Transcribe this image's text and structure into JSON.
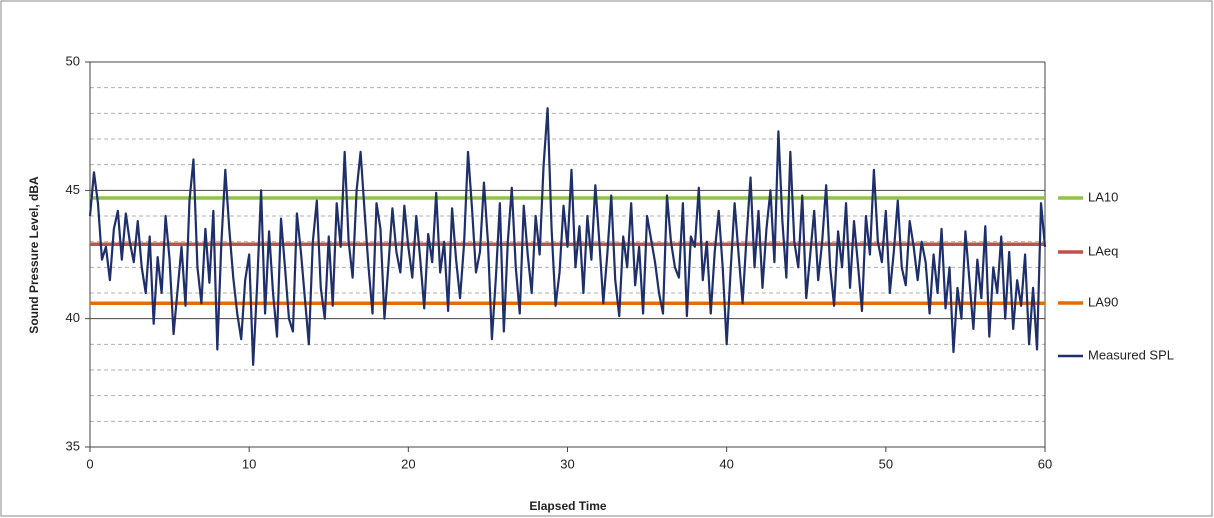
{
  "chart_data": {
    "type": "line",
    "x_label": "Elapsed Time",
    "y_label": "Sound Pressure Level, dBA",
    "xlim": [
      0,
      60
    ],
    "xticks": [
      0,
      10,
      20,
      30,
      40,
      50,
      60
    ],
    "ylim": [
      35,
      50
    ],
    "yticks": [
      35,
      40,
      45,
      50
    ],
    "minor_yticks": [
      36,
      37,
      38,
      39,
      41,
      42,
      43,
      44,
      46,
      47,
      48,
      49
    ],
    "legend": "right",
    "reference_lines": [
      {
        "name": "LA10",
        "color": "#92c050",
        "value": 44.7
      },
      {
        "name": "LAeq",
        "color": "#c0504d",
        "value": 42.9
      },
      {
        "name": "LA90",
        "color": "#e46c0a",
        "value": 40.6
      }
    ],
    "x": [
      0,
      0.25,
      0.5,
      0.75,
      1,
      1.25,
      1.5,
      1.75,
      2,
      2.25,
      2.5,
      2.75,
      3,
      3.25,
      3.5,
      3.75,
      4,
      4.25,
      4.5,
      4.75,
      5,
      5.25,
      5.5,
      5.75,
      6,
      6.25,
      6.5,
      6.75,
      7,
      7.25,
      7.5,
      7.75,
      8,
      8.25,
      8.5,
      8.75,
      9,
      9.25,
      9.5,
      9.75,
      10,
      10.25,
      10.5,
      10.75,
      11,
      11.25,
      11.5,
      11.75,
      12,
      12.25,
      12.5,
      12.75,
      13,
      13.25,
      13.5,
      13.75,
      14,
      14.25,
      14.5,
      14.75,
      15,
      15.25,
      15.5,
      15.75,
      16,
      16.25,
      16.5,
      16.75,
      17,
      17.25,
      17.5,
      17.75,
      18,
      18.25,
      18.5,
      18.75,
      19,
      19.25,
      19.5,
      19.75,
      20,
      20.25,
      20.5,
      20.75,
      21,
      21.25,
      21.5,
      21.75,
      22,
      22.25,
      22.5,
      22.75,
      23,
      23.25,
      23.5,
      23.75,
      24,
      24.25,
      24.5,
      24.75,
      25,
      25.25,
      25.5,
      25.75,
      26,
      26.25,
      26.5,
      26.75,
      27,
      27.25,
      27.5,
      27.75,
      28,
      28.25,
      28.5,
      28.75,
      29,
      29.25,
      29.5,
      29.75,
      30,
      30.25,
      30.5,
      30.75,
      31,
      31.25,
      31.5,
      31.75,
      32,
      32.25,
      32.5,
      32.75,
      33,
      33.25,
      33.5,
      33.75,
      34,
      34.25,
      34.5,
      34.75,
      35,
      35.25,
      35.5,
      35.75,
      36,
      36.25,
      36.5,
      36.75,
      37,
      37.25,
      37.5,
      37.75,
      38,
      38.25,
      38.5,
      38.75,
      39,
      39.25,
      39.5,
      39.75,
      40,
      40.25,
      40.5,
      40.75,
      41,
      41.25,
      41.5,
      41.75,
      42,
      42.25,
      42.5,
      42.75,
      43,
      43.25,
      43.5,
      43.75,
      44,
      44.25,
      44.5,
      44.75,
      45,
      45.25,
      45.5,
      45.75,
      46,
      46.25,
      46.5,
      46.75,
      47,
      47.25,
      47.5,
      47.75,
      48,
      48.25,
      48.5,
      48.75,
      49,
      49.25,
      49.5,
      49.75,
      50,
      50.25,
      50.5,
      50.75,
      51,
      51.25,
      51.5,
      51.75,
      52,
      52.25,
      52.5,
      52.75,
      53,
      53.25,
      53.5,
      53.75,
      54,
      54.25,
      54.5,
      54.75,
      55,
      55.25,
      55.5,
      55.75,
      56,
      56.25,
      56.5,
      56.75,
      57,
      57.25,
      57.5,
      57.75,
      58,
      58.25,
      58.5,
      58.75,
      59,
      59.25,
      59.5,
      59.75,
      60
    ],
    "series": [
      {
        "name": "Measured SPL",
        "color": "#1f2f6b",
        "values": [
          44.0,
          45.7,
          44.5,
          42.3,
          42.8,
          41.5,
          43.5,
          44.2,
          42.3,
          44.1,
          43.0,
          42.2,
          43.8,
          42.0,
          41.0,
          43.2,
          39.8,
          42.4,
          41.0,
          44.0,
          42.3,
          39.4,
          41.1,
          42.8,
          40.5,
          44.6,
          46.2,
          42.0,
          40.6,
          43.5,
          41.4,
          44.2,
          38.8,
          42.9,
          45.8,
          43.5,
          41.6,
          40.2,
          39.2,
          41.5,
          42.5,
          38.2,
          41.3,
          45.0,
          40.2,
          43.4,
          41.0,
          39.3,
          43.9,
          42.0,
          40.0,
          39.5,
          44.1,
          42.6,
          40.8,
          39.0,
          43.0,
          44.6,
          41.2,
          40.0,
          43.2,
          40.5,
          44.5,
          42.8,
          46.5,
          43.0,
          41.6,
          45.0,
          46.5,
          44.2,
          42.0,
          40.2,
          44.5,
          43.5,
          40.0,
          42.1,
          44.3,
          42.6,
          41.8,
          44.4,
          42.8,
          41.6,
          44.0,
          42.3,
          40.4,
          43.3,
          42.2,
          44.9,
          41.8,
          43.0,
          40.3,
          44.3,
          42.3,
          40.8,
          42.9,
          46.5,
          44.3,
          41.8,
          42.6,
          45.3,
          43.0,
          39.2,
          41.6,
          44.5,
          39.5,
          43.0,
          45.1,
          42.0,
          40.2,
          44.4,
          42.5,
          41.0,
          44.0,
          42.5,
          46.0,
          48.2,
          43.5,
          40.5,
          41.8,
          44.4,
          42.8,
          45.8,
          42.0,
          43.6,
          41.0,
          44.0,
          42.3,
          45.2,
          43.0,
          40.6,
          42.5,
          44.8,
          41.5,
          40.1,
          43.2,
          42.0,
          44.5,
          41.3,
          42.8,
          40.2,
          44.0,
          43.1,
          42.2,
          41.0,
          40.2,
          44.8,
          43.0,
          42.0,
          41.6,
          44.5,
          40.1,
          43.2,
          42.8,
          45.1,
          41.5,
          43.0,
          40.2,
          42.6,
          44.2,
          42.0,
          39.0,
          41.9,
          44.5,
          42.5,
          40.6,
          43.2,
          45.5,
          42.0,
          44.2,
          41.2,
          43.5,
          45.0,
          42.2,
          47.3,
          43.8,
          41.6,
          46.5,
          43.0,
          42.0,
          44.8,
          40.8,
          42.5,
          44.2,
          41.5,
          43.0,
          45.2,
          42.0,
          40.5,
          43.4,
          42.0,
          44.5,
          41.2,
          43.8,
          42.1,
          40.3,
          44.0,
          42.5,
          45.8,
          43.0,
          42.2,
          44.2,
          41.0,
          42.6,
          44.6,
          42.0,
          41.3,
          43.8,
          42.8,
          41.5,
          43.0,
          42.2,
          40.2,
          42.5,
          41.0,
          43.5,
          40.4,
          42.0,
          38.7,
          41.2,
          40.0,
          43.4,
          41.5,
          39.6,
          42.3,
          40.8,
          43.6,
          39.3,
          42.0,
          41.0,
          43.2,
          40.0,
          42.6,
          39.6,
          41.5,
          40.5,
          42.5,
          39.0,
          41.2,
          38.8,
          44.5,
          42.8
        ]
      }
    ]
  }
}
